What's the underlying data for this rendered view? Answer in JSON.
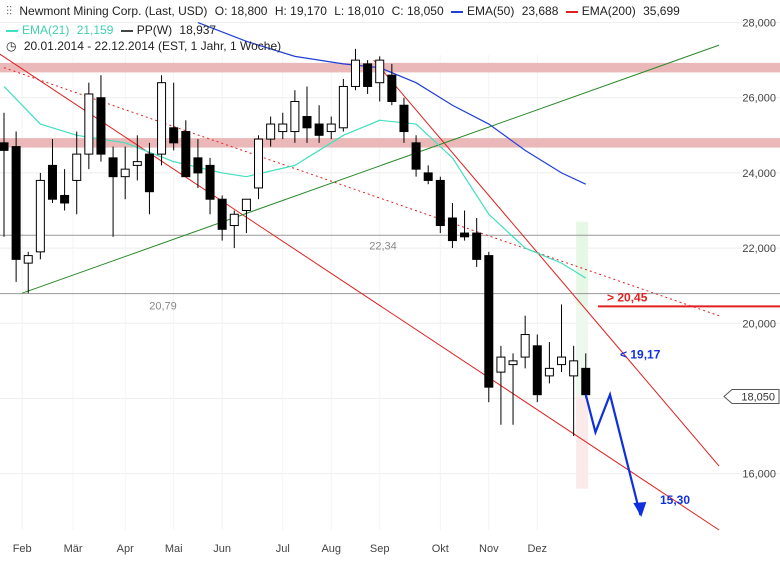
{
  "header": {
    "instrument": "Newmont Mining Corp. (Last, USD)",
    "open": "O: 18,800",
    "high": "H: 19,170",
    "low": "L: 18,010",
    "close": "C: 18,050",
    "ema50_label": "EMA(50)",
    "ema50_value": "23,688",
    "ema200_label": "EMA(200)",
    "ema200_value": "35,699",
    "ema21_label": "EMA(21)",
    "ema21_value": "21,159",
    "pp_label": "PP(W)",
    "pp_value": "18,937",
    "range": "20.01.2014 - 22.12.2014 (EST, 1 Jahr, 1 Woche)"
  },
  "colors": {
    "ema50": "#1f3fd6",
    "ema200": "#e02020",
    "ema21": "#40e0c0",
    "pp": "#444444",
    "trend_red": "#e02020",
    "trend_green": "#2a8a2a",
    "resistance": "#e8b0b0",
    "target_arrow": "#1030e0"
  },
  "chart_data": {
    "type": "candlestick",
    "ylim": [
      14.5,
      28.6
    ],
    "y_ticks": [
      "16,000",
      "18,000",
      "20,000",
      "22,000",
      "24,000",
      "26,000",
      "28,000"
    ],
    "y_tick_values": [
      16,
      18,
      20,
      22,
      24,
      26,
      28
    ],
    "month_labels": [
      "Feb",
      "Mär",
      "Apr",
      "Mai",
      "Jun",
      "Jul",
      "Aug",
      "Sep",
      "Okt",
      "Nov",
      "Dez"
    ],
    "month_weeks": [
      1.5,
      5.7,
      10.0,
      14.0,
      18.0,
      23.0,
      27.0,
      31.0,
      36.0,
      40.0,
      44.0
    ],
    "candles": [
      {
        "o": 24.8,
        "h": 25.6,
        "l": 22.3,
        "c": 24.6
      },
      {
        "o": 24.7,
        "h": 25.1,
        "l": 21.1,
        "c": 21.7
      },
      {
        "o": 21.6,
        "h": 21.9,
        "l": 20.8,
        "c": 21.8
      },
      {
        "o": 21.9,
        "h": 24.0,
        "l": 21.7,
        "c": 23.8
      },
      {
        "o": 24.2,
        "h": 24.9,
        "l": 23.2,
        "c": 23.3
      },
      {
        "o": 23.4,
        "h": 24.1,
        "l": 23.0,
        "c": 23.2
      },
      {
        "o": 23.8,
        "h": 25.1,
        "l": 22.9,
        "c": 24.5
      },
      {
        "o": 24.5,
        "h": 26.4,
        "l": 24.1,
        "c": 26.1
      },
      {
        "o": 26.0,
        "h": 26.6,
        "l": 24.3,
        "c": 24.5
      },
      {
        "o": 24.4,
        "h": 24.7,
        "l": 22.3,
        "c": 23.9
      },
      {
        "o": 23.9,
        "h": 24.7,
        "l": 23.3,
        "c": 24.1
      },
      {
        "o": 24.2,
        "h": 25.0,
        "l": 23.8,
        "c": 24.3
      },
      {
        "o": 24.5,
        "h": 24.8,
        "l": 22.9,
        "c": 23.5
      },
      {
        "o": 24.5,
        "h": 26.6,
        "l": 24.2,
        "c": 26.4
      },
      {
        "o": 25.2,
        "h": 26.4,
        "l": 24.6,
        "c": 24.8
      },
      {
        "o": 25.1,
        "h": 25.4,
        "l": 23.9,
        "c": 23.9
      },
      {
        "o": 24.4,
        "h": 24.9,
        "l": 23.6,
        "c": 24.0
      },
      {
        "o": 24.2,
        "h": 24.4,
        "l": 22.9,
        "c": 23.3
      },
      {
        "o": 23.3,
        "h": 23.4,
        "l": 22.2,
        "c": 22.5
      },
      {
        "o": 22.6,
        "h": 23.0,
        "l": 22.0,
        "c": 22.9
      },
      {
        "o": 23.0,
        "h": 23.3,
        "l": 22.4,
        "c": 23.3
      },
      {
        "o": 23.6,
        "h": 25.0,
        "l": 23.3,
        "c": 24.9
      },
      {
        "o": 24.9,
        "h": 25.5,
        "l": 24.7,
        "c": 25.3
      },
      {
        "o": 25.1,
        "h": 25.6,
        "l": 24.9,
        "c": 25.3
      },
      {
        "o": 25.1,
        "h": 26.2,
        "l": 24.8,
        "c": 25.9
      },
      {
        "o": 25.5,
        "h": 26.3,
        "l": 24.8,
        "c": 25.2
      },
      {
        "o": 25.3,
        "h": 25.8,
        "l": 24.8,
        "c": 25.0
      },
      {
        "o": 25.1,
        "h": 25.5,
        "l": 24.9,
        "c": 25.3
      },
      {
        "o": 25.2,
        "h": 26.5,
        "l": 25.1,
        "c": 26.3
      },
      {
        "o": 26.3,
        "h": 27.3,
        "l": 26.2,
        "c": 27.0
      },
      {
        "o": 26.9,
        "h": 27.0,
        "l": 26.1,
        "c": 26.3
      },
      {
        "o": 26.4,
        "h": 27.1,
        "l": 25.9,
        "c": 27.0
      },
      {
        "o": 26.6,
        "h": 26.9,
        "l": 25.8,
        "c": 25.9
      },
      {
        "o": 25.8,
        "h": 26.0,
        "l": 24.8,
        "c": 25.1
      },
      {
        "o": 24.8,
        "h": 25.0,
        "l": 23.9,
        "c": 24.1
      },
      {
        "o": 24.0,
        "h": 24.2,
        "l": 23.7,
        "c": 23.8
      },
      {
        "o": 23.8,
        "h": 23.9,
        "l": 22.4,
        "c": 22.6
      },
      {
        "o": 22.8,
        "h": 23.2,
        "l": 22.0,
        "c": 22.2
      },
      {
        "o": 22.4,
        "h": 23.0,
        "l": 22.2,
        "c": 22.3
      },
      {
        "o": 22.4,
        "h": 22.8,
        "l": 21.5,
        "c": 21.7
      },
      {
        "o": 21.8,
        "h": 21.9,
        "l": 17.9,
        "c": 18.3
      },
      {
        "o": 18.7,
        "h": 19.4,
        "l": 17.3,
        "c": 19.1
      },
      {
        "o": 18.9,
        "h": 19.2,
        "l": 17.3,
        "c": 19.0
      },
      {
        "o": 19.1,
        "h": 20.2,
        "l": 18.8,
        "c": 19.7
      },
      {
        "o": 19.4,
        "h": 19.7,
        "l": 17.9,
        "c": 18.1
      },
      {
        "o": 18.6,
        "h": 19.5,
        "l": 18.4,
        "c": 18.8
      },
      {
        "o": 18.9,
        "h": 20.5,
        "l": 18.7,
        "c": 19.1
      },
      {
        "o": 18.6,
        "h": 19.4,
        "l": 17.0,
        "c": 19.0
      },
      {
        "o": 18.8,
        "h": 19.2,
        "l": 18.0,
        "c": 18.1
      }
    ],
    "ema50": [
      [
        16,
        28.0
      ],
      [
        20,
        27.5
      ],
      [
        24,
        27.1
      ],
      [
        28,
        26.9
      ],
      [
        31,
        26.8
      ],
      [
        34,
        26.4
      ],
      [
        37,
        25.8
      ],
      [
        40,
        25.3
      ],
      [
        43,
        24.6
      ],
      [
        46,
        24.0
      ],
      [
        48,
        23.7
      ]
    ],
    "ema21": [
      [
        0,
        26.3
      ],
      [
        3,
        25.3
      ],
      [
        6,
        25.0
      ],
      [
        10,
        24.8
      ],
      [
        14,
        24.3
      ],
      [
        18,
        24.0
      ],
      [
        20,
        23.9
      ],
      [
        24,
        24.2
      ],
      [
        28,
        25.0
      ],
      [
        31,
        25.4
      ],
      [
        34,
        25.3
      ],
      [
        37,
        24.4
      ],
      [
        40,
        22.9
      ],
      [
        43,
        22.0
      ],
      [
        46,
        21.6
      ],
      [
        48,
        21.2
      ]
    ],
    "pp_levels": [
      22.34,
      20.79
    ],
    "resistance_zones": [
      [
        26.7,
        26.9
      ],
      [
        24.7,
        24.9
      ]
    ],
    "trend_lines": [
      {
        "color": "trend_red",
        "style": "solid",
        "points": [
          [
            -1.0,
            27.3
          ],
          [
            59.0,
            14.5
          ]
        ]
      },
      {
        "color": "trend_red",
        "style": "solid",
        "points": [
          [
            30.5,
            27.0
          ],
          [
            59.0,
            16.2
          ]
        ]
      },
      {
        "color": "trend_red",
        "style": "dotted",
        "points": [
          [
            0.0,
            26.8
          ],
          [
            59.0,
            20.2
          ]
        ]
      },
      {
        "color": "trend_green",
        "style": "solid",
        "points": [
          [
            1.5,
            20.8
          ],
          [
            59.0,
            27.4
          ]
        ]
      }
    ],
    "projection": [
      [
        48,
        18.1
      ],
      [
        48.8,
        17.1
      ],
      [
        50.0,
        18.1
      ],
      [
        52.5,
        14.9
      ]
    ],
    "annotations": {
      "pp_label_1": "22,34",
      "pp_label_2": "20,79",
      "resistance_label": "> 20,45",
      "resistance_value": 20.45,
      "support_label": "< 19,17",
      "support_value": 19.17,
      "target_label": "15,30",
      "current_price_label": "18,050",
      "current_price": 18.05
    }
  }
}
